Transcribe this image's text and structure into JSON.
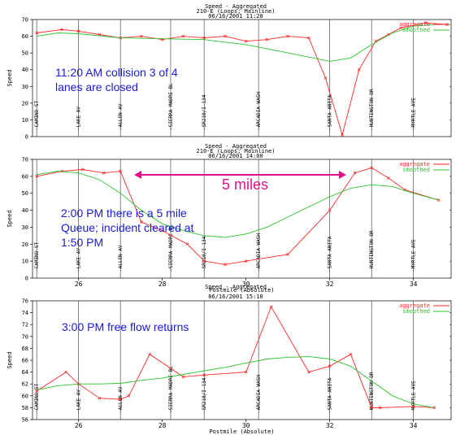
{
  "colors": {
    "aggregate": "#ff2a2a",
    "smoothed": "#2ac42a",
    "annotation": "#1a1ad6",
    "arrow": "#e0108c",
    "text": "#000000",
    "grid": "#000000"
  },
  "chart_data": [
    {
      "type": "line",
      "title": "Speed - Aggregated",
      "subtitle": "210-E (Loops; Mainline)",
      "datetime": "06/16/2001 11:20",
      "xlabel": "",
      "ylabel": "Speed",
      "xlim": [
        24.9,
        34.9
      ],
      "ylim": [
        0,
        70
      ],
      "yticks": [
        0,
        10,
        20,
        30,
        40,
        50,
        60,
        70
      ],
      "xticks": [],
      "legend": [
        "aggregate",
        "smoothed"
      ],
      "legend_position": "top-right",
      "stations": [
        {
          "x": 25.0,
          "label": "CAMINO-ST"
        },
        {
          "x": 26.0,
          "label": "LAKE AV"
        },
        {
          "x": 27.0,
          "label": "ALLEN AV"
        },
        {
          "x": 28.2,
          "label": "SIERRA MADRE BL"
        },
        {
          "x": 29.0,
          "label": "SR210/I-134"
        },
        {
          "x": 30.3,
          "label": "ARCADIA WASH"
        },
        {
          "x": 32.0,
          "label": "SANTA ANITA"
        },
        {
          "x": 33.0,
          "label": "HUNTINGTON DR"
        },
        {
          "x": 34.0,
          "label": "MYRTLE AVE"
        }
      ],
      "series": [
        {
          "name": "aggregate",
          "x": [
            25.0,
            25.6,
            26.0,
            26.5,
            27.0,
            27.5,
            28.0,
            28.5,
            29.0,
            29.5,
            30.0,
            30.5,
            31.0,
            31.5,
            31.9,
            32.3,
            32.7,
            33.1,
            33.4,
            33.7,
            34.3,
            34.8
          ],
          "values": [
            62,
            64,
            63,
            61,
            59,
            60,
            58,
            60,
            59,
            60,
            57,
            58,
            60,
            59,
            35,
            1,
            40,
            57,
            61,
            65,
            68,
            67
          ]
        },
        {
          "name": "smoothed",
          "x": [
            25.0,
            25.5,
            26.0,
            27.0,
            28.0,
            29.0,
            30.0,
            31.0,
            32.0,
            32.5,
            33.0,
            33.5,
            34.0,
            34.5,
            34.9
          ],
          "values": [
            60,
            62,
            61.5,
            59,
            58.5,
            58,
            55,
            50,
            45,
            47,
            55,
            62,
            66,
            67,
            67
          ]
        }
      ]
    },
    {
      "type": "line",
      "title": "Speed - Aggregated",
      "subtitle": "210-E (Loops; Mainline)",
      "datetime": "06/16/2001 14:00",
      "xlabel": "Postmile (Absolute)",
      "ylabel": "Speed",
      "xlim": [
        24.9,
        34.9
      ],
      "ylim": [
        0,
        70
      ],
      "yticks": [
        0,
        10,
        20,
        30,
        40,
        50,
        60,
        70
      ],
      "xticks": [
        26,
        28,
        30,
        32,
        34
      ],
      "legend": [
        "aggregate",
        "smoothed"
      ],
      "legend_position": "top-right",
      "stations": [
        {
          "x": 25.0,
          "label": "CAMINO-ST"
        },
        {
          "x": 26.0,
          "label": "LAKE AV"
        },
        {
          "x": 27.0,
          "label": "ALLEN AV"
        },
        {
          "x": 28.2,
          "label": "SIERRA MADRE BL"
        },
        {
          "x": 29.0,
          "label": "SR210/I-134"
        },
        {
          "x": 30.3,
          "label": "ARCADIA WASH"
        },
        {
          "x": 32.0,
          "label": "SANTA ANITA"
        },
        {
          "x": 33.0,
          "label": "HUNTINGTON DR"
        },
        {
          "x": 34.0,
          "label": "MYRTLE AVE"
        }
      ],
      "series": [
        {
          "name": "aggregate",
          "x": [
            25.0,
            25.6,
            26.1,
            26.6,
            27.0,
            27.5,
            28.0,
            28.6,
            29.0,
            29.5,
            30.0,
            31.0,
            32.0,
            32.6,
            33.0,
            33.4,
            33.8,
            34.6
          ],
          "values": [
            60,
            63,
            64,
            62,
            63,
            33,
            28,
            20,
            10,
            8,
            10,
            14,
            40,
            62,
            65,
            59,
            52,
            46
          ]
        },
        {
          "name": "smoothed",
          "x": [
            25.0,
            25.5,
            26.0,
            26.5,
            27.0,
            27.5,
            28.0,
            28.5,
            29.0,
            29.5,
            30.0,
            30.5,
            31.0,
            31.5,
            32.0,
            32.5,
            33.0,
            33.5,
            34.0,
            34.6
          ],
          "values": [
            61,
            63,
            62,
            58,
            50,
            40,
            32,
            28,
            25,
            24,
            26,
            30,
            36,
            42,
            48,
            53,
            55,
            54,
            50,
            46
          ]
        }
      ]
    },
    {
      "type": "line",
      "title": "Speed - Aggregated",
      "subtitle": "",
      "datetime": "06/16/2001 15:10",
      "xlabel": "Postmile (Absolute)",
      "ylabel": "Speed",
      "xlim": [
        24.9,
        34.9
      ],
      "ylim": [
        56,
        76
      ],
      "yticks": [
        56,
        58,
        60,
        62,
        64,
        66,
        68,
        70,
        72,
        74,
        76
      ],
      "xticks": [
        26,
        28,
        30,
        32,
        34
      ],
      "legend": [
        "aggregate",
        "smoothed"
      ],
      "legend_position": "top-right",
      "stations": [
        {
          "x": 25.0,
          "label": "CAMINO-ST"
        },
        {
          "x": 26.0,
          "label": "LAKE AV"
        },
        {
          "x": 27.0,
          "label": "ALLEN AV"
        },
        {
          "x": 28.2,
          "label": "SIERRA MADRE BL"
        },
        {
          "x": 29.0,
          "label": "SR210/I-134"
        },
        {
          "x": 30.3,
          "label": "ARCADIA WASH"
        },
        {
          "x": 32.0,
          "label": "SANTA ANITA"
        },
        {
          "x": 33.0,
          "label": "HUNTINGTON DR"
        },
        {
          "x": 34.0,
          "label": "MYRTLE AVE"
        }
      ],
      "series": [
        {
          "name": "aggregate",
          "x": [
            25.0,
            25.7,
            26.0,
            26.5,
            27.0,
            27.2,
            27.7,
            28.5,
            29.0,
            30.0,
            30.6,
            31.5,
            32.0,
            32.5,
            33.0,
            33.2,
            34.0,
            34.5
          ],
          "values": [
            60.8,
            64,
            62,
            59.6,
            59.4,
            60.0,
            67,
            63.2,
            63.5,
            64,
            75,
            64,
            65,
            67,
            58,
            58,
            58.2,
            58
          ]
        },
        {
          "name": "smoothed",
          "x": [
            25.0,
            25.5,
            26.0,
            26.5,
            27.0,
            27.5,
            28.0,
            28.5,
            29.0,
            29.5,
            30.0,
            30.5,
            31.0,
            31.5,
            32.0,
            32.5,
            33.0,
            33.5,
            34.0,
            34.5
          ],
          "values": [
            61,
            61.7,
            62,
            62,
            62.1,
            62.6,
            63,
            63.6,
            64.2,
            64.8,
            65.5,
            66.2,
            66.5,
            66.6,
            66.2,
            65,
            62.5,
            60,
            58.6,
            58
          ]
        }
      ]
    }
  ],
  "annotations": {
    "panel1_note": "11:20 AM collision 3 of 4 lanes are closed",
    "panel2_note": "2:00 PM there is a 5 mile Queue; incident cleared at 1:50 PM",
    "panel2_distance": "5 miles",
    "panel3_note": "3:00 PM free flow returns"
  },
  "overlap_text": "Postmile (Absolute)"
}
